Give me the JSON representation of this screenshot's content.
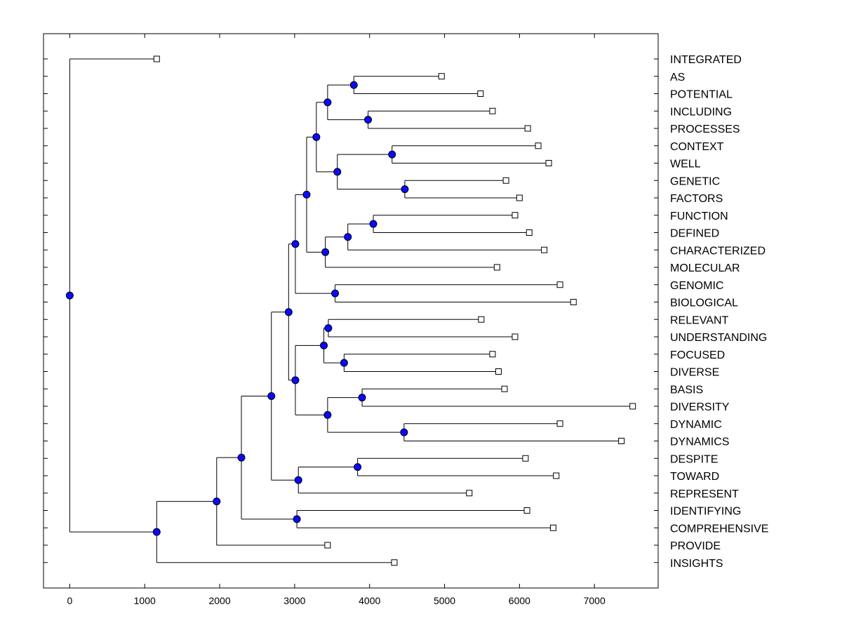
{
  "chart_data": {
    "type": "dendrogram",
    "title": "",
    "xlabel": "",
    "ylabel": "",
    "xlim": [
      -350,
      7850
    ],
    "x_ticks": [
      0,
      1000,
      2000,
      3000,
      4000,
      5000,
      6000,
      7000
    ],
    "x_tick_labels": [
      "0",
      "1000",
      "2000",
      "3000",
      "4000",
      "5000",
      "6000",
      "7000"
    ],
    "colors": {
      "node": "#0a0aff",
      "leaf": "#ffffff",
      "line": "#000000"
    },
    "leaves": [
      {
        "label": "INTEGRATED",
        "value": 1160
      },
      {
        "label": "AS",
        "value": 4960
      },
      {
        "label": "POTENTIAL",
        "value": 5480
      },
      {
        "label": "INCLUDING",
        "value": 5640
      },
      {
        "label": "PROCESSES",
        "value": 6110
      },
      {
        "label": "CONTEXT",
        "value": 6250
      },
      {
        "label": "WELL",
        "value": 6390
      },
      {
        "label": "GENETIC",
        "value": 5820
      },
      {
        "label": "FACTORS",
        "value": 6000
      },
      {
        "label": "FUNCTION",
        "value": 5940
      },
      {
        "label": "DEFINED",
        "value": 6130
      },
      {
        "label": "CHARACTERIZED",
        "value": 6330
      },
      {
        "label": "MOLECULAR",
        "value": 5700
      },
      {
        "label": "GENOMIC",
        "value": 6540
      },
      {
        "label": "BIOLOGICAL",
        "value": 6720
      },
      {
        "label": "RELEVANT",
        "value": 5490
      },
      {
        "label": "UNDERSTANDING",
        "value": 5940
      },
      {
        "label": "FOCUSED",
        "value": 5640
      },
      {
        "label": "DIVERSE",
        "value": 5720
      },
      {
        "label": "BASIS",
        "value": 5800
      },
      {
        "label": "DIVERSITY",
        "value": 7510
      },
      {
        "label": "DYNAMIC",
        "value": 6540
      },
      {
        "label": "DYNAMICS",
        "value": 7360
      },
      {
        "label": "DESPITE",
        "value": 6080
      },
      {
        "label": "TOWARD",
        "value": 6490
      },
      {
        "label": "REPRESENT",
        "value": 5330
      },
      {
        "label": "IDENTIFYING",
        "value": 6100
      },
      {
        "label": "COMPREHENSIVE",
        "value": 6450
      },
      {
        "label": "PROVIDE",
        "value": 3440
      },
      {
        "label": "INSIGHTS",
        "value": 4330
      }
    ],
    "nodes": [
      {
        "id": "n_as_pot",
        "value": 3790,
        "children": [
          "AS",
          "POTENTIAL"
        ]
      },
      {
        "id": "n_inc_proc",
        "value": 3980,
        "children": [
          "INCLUDING",
          "PROCESSES"
        ]
      },
      {
        "id": "n_a",
        "value": 3440,
        "children": [
          "n_as_pot",
          "n_inc_proc"
        ]
      },
      {
        "id": "n_ctx_well",
        "value": 4300,
        "children": [
          "CONTEXT",
          "WELL"
        ]
      },
      {
        "id": "n_gen_fac",
        "value": 4470,
        "children": [
          "GENETIC",
          "FACTORS"
        ]
      },
      {
        "id": "n_b",
        "value": 3570,
        "children": [
          "n_ctx_well",
          "n_gen_fac"
        ]
      },
      {
        "id": "n_c",
        "value": 3290,
        "children": [
          "n_a",
          "n_b"
        ]
      },
      {
        "id": "n_fun_def",
        "value": 4050,
        "children": [
          "FUNCTION",
          "DEFINED"
        ]
      },
      {
        "id": "n_d",
        "value": 3710,
        "children": [
          "n_fun_def",
          "CHARACTERIZED"
        ]
      },
      {
        "id": "n_e",
        "value": 3410,
        "children": [
          "n_d",
          "MOLECULAR"
        ]
      },
      {
        "id": "n_f",
        "value": 3160,
        "children": [
          "n_c",
          "n_e"
        ]
      },
      {
        "id": "n_gen_bio",
        "value": 3540,
        "children": [
          "GENOMIC",
          "BIOLOGICAL"
        ]
      },
      {
        "id": "n_g",
        "value": 3010,
        "children": [
          "n_f",
          "n_gen_bio"
        ]
      },
      {
        "id": "n_rel_und",
        "value": 3450,
        "children": [
          "RELEVANT",
          "UNDERSTANDING"
        ]
      },
      {
        "id": "n_foc_div",
        "value": 3660,
        "children": [
          "FOCUSED",
          "DIVERSE"
        ]
      },
      {
        "id": "n_h",
        "value": 3390,
        "children": [
          "n_rel_und",
          "n_foc_div"
        ]
      },
      {
        "id": "n_bas_dvs",
        "value": 3900,
        "children": [
          "BASIS",
          "DIVERSITY"
        ]
      },
      {
        "id": "n_dyn",
        "value": 4460,
        "children": [
          "DYNAMIC",
          "DYNAMICS"
        ]
      },
      {
        "id": "n_i",
        "value": 3440,
        "children": [
          "n_bas_dvs",
          "n_dyn"
        ]
      },
      {
        "id": "n_j",
        "value": 3010,
        "children": [
          "n_h",
          "n_i"
        ]
      },
      {
        "id": "n_k",
        "value": 2920,
        "children": [
          "n_g",
          "n_j"
        ]
      },
      {
        "id": "n_des_tow",
        "value": 3840,
        "children": [
          "DESPITE",
          "TOWARD"
        ]
      },
      {
        "id": "n_l",
        "value": 3050,
        "children": [
          "n_des_tow",
          "REPRESENT"
        ]
      },
      {
        "id": "n_m",
        "value": 2690,
        "children": [
          "n_k",
          "n_l"
        ]
      },
      {
        "id": "n_idn_cmp",
        "value": 3030,
        "children": [
          "IDENTIFYING",
          "COMPREHENSIVE"
        ]
      },
      {
        "id": "n_n",
        "value": 2290,
        "children": [
          "n_m",
          "n_idn_cmp"
        ]
      },
      {
        "id": "n_o",
        "value": 1960,
        "children": [
          "n_n",
          "PROVIDE"
        ]
      },
      {
        "id": "n_p",
        "value": 1160,
        "children": [
          "n_o",
          "INSIGHTS"
        ]
      },
      {
        "id": "n_root",
        "value": 0,
        "children": [
          "INTEGRATED",
          "n_p"
        ]
      }
    ]
  }
}
